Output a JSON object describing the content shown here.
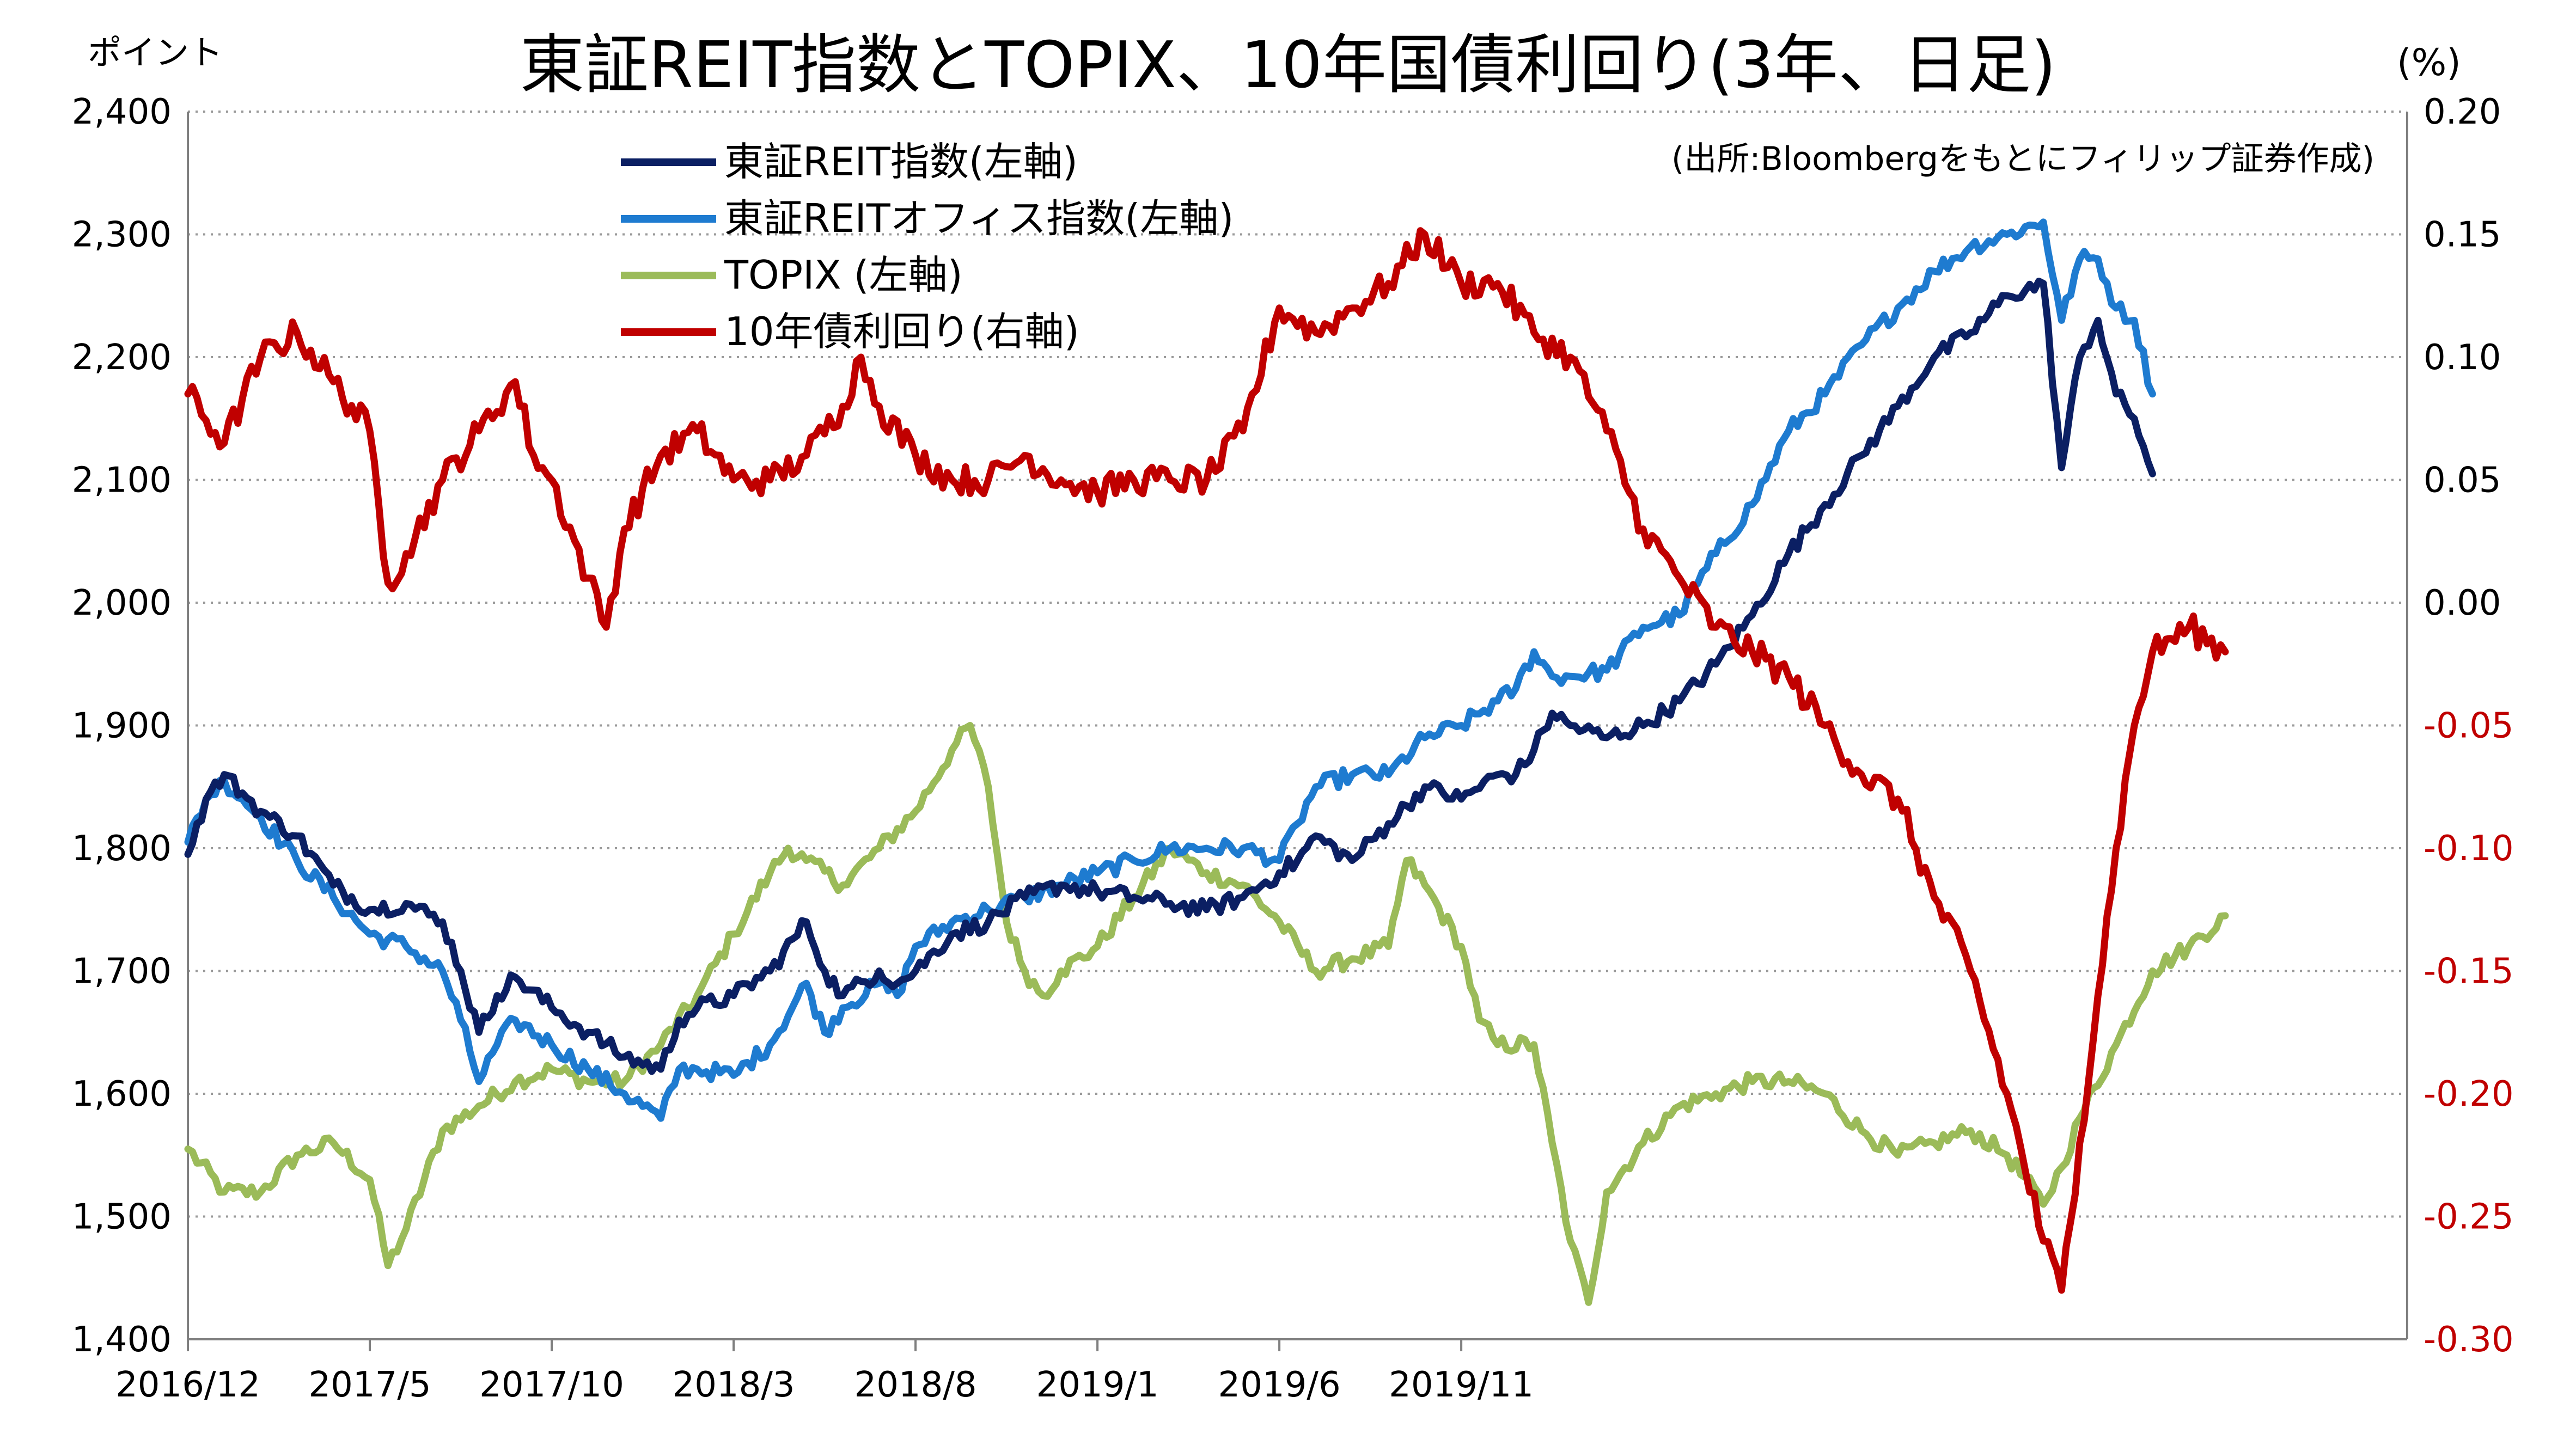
{
  "header": {
    "title": "東証REIT指数とTOPIX、10年国債利回り(3年、日足)",
    "left_unit": "ポイント",
    "right_unit": "(%)",
    "source": "(出所:Bloombergをもとにフィリップ証券作成)"
  },
  "colors": {
    "reit": "#0b1f63",
    "reit_office": "#1e7bd0",
    "topix": "#9bbb59",
    "jgb10y": "#c00000",
    "grid": "#9a9a9a",
    "right_negative_tick": "#c00000"
  },
  "chart_data": {
    "type": "line",
    "title": "東証REIT指数とTOPIX、10年国債利回り(3年、日足)",
    "x_tick_labels": [
      "2016/12",
      "2017/5",
      "2017/10",
      "2018/3",
      "2018/8",
      "2019/1",
      "2019/6",
      "2019/11"
    ],
    "x_range": [
      "2016/12",
      "2019/12"
    ],
    "y_left": {
      "label": "ポイント",
      "range": [
        1400,
        2400
      ],
      "ticks": [
        "1,400",
        "1,500",
        "1,600",
        "1,700",
        "1,800",
        "1,900",
        "2,000",
        "2,100",
        "2,200",
        "2,300",
        "2,400"
      ]
    },
    "y_right": {
      "label": "(%)",
      "range": [
        -0.3,
        0.2
      ],
      "ticks": [
        "-0.30",
        "-0.25",
        "-0.20",
        "-0.15",
        "-0.10",
        "-0.05",
        "0.00",
        "0.05",
        "0.10",
        "0.15",
        "0.20"
      ]
    },
    "grid": "horizontal dotted",
    "legend_position": "top-left inside plot",
    "x_unit": "month (2016/12 = 0)",
    "series": [
      {
        "name": "東証REIT指数(左軸)",
        "axis": "left",
        "color": "#0b1f63",
        "points": [
          [
            0,
            1795
          ],
          [
            0.5,
            1840
          ],
          [
            1,
            1860
          ],
          [
            1.5,
            1845
          ],
          [
            2,
            1830
          ],
          [
            3,
            1810
          ],
          [
            4,
            1770
          ],
          [
            5,
            1750
          ],
          [
            6,
            1755
          ],
          [
            7,
            1740
          ],
          [
            7.5,
            1700
          ],
          [
            8,
            1650
          ],
          [
            8.5,
            1680
          ],
          [
            9,
            1695
          ],
          [
            10,
            1670
          ],
          [
            11,
            1650
          ],
          [
            12,
            1630
          ],
          [
            13,
            1620
          ],
          [
            13.5,
            1660
          ],
          [
            14,
            1670
          ],
          [
            15,
            1680
          ],
          [
            16,
            1700
          ],
          [
            17,
            1740
          ],
          [
            17.5,
            1700
          ],
          [
            18,
            1680
          ],
          [
            19,
            1700
          ],
          [
            19.5,
            1690
          ],
          [
            20,
            1700
          ],
          [
            21,
            1730
          ],
          [
            22,
            1740
          ],
          [
            23,
            1760
          ],
          [
            24,
            1770
          ],
          [
            25,
            1765
          ],
          [
            26,
            1760
          ],
          [
            27,
            1755
          ],
          [
            28,
            1750
          ],
          [
            29,
            1760
          ],
          [
            30,
            1780
          ],
          [
            30.5,
            1790
          ],
          [
            31,
            1810
          ],
          [
            32,
            1790
          ],
          [
            33,
            1820
          ],
          [
            34,
            1850
          ],
          [
            35,
            1840
          ],
          [
            36,
            1860
          ],
          [
            36.5,
            1860
          ],
          [
            37,
            1880
          ],
          [
            37.5,
            1910
          ],
          [
            38,
            1900
          ],
          [
            39,
            1890
          ],
          [
            40,
            1900
          ],
          [
            41,
            1920
          ],
          [
            42,
            1950
          ],
          [
            43,
            1990
          ],
          [
            44,
            2040
          ],
          [
            45,
            2080
          ],
          [
            46,
            2120
          ],
          [
            47,
            2160
          ],
          [
            48,
            2200
          ],
          [
            49,
            2220
          ],
          [
            50,
            2250
          ],
          [
            51,
            2260
          ],
          [
            51.5,
            2110
          ],
          [
            52,
            2200
          ],
          [
            52.5,
            2230
          ],
          [
            53,
            2170
          ],
          [
            53.5,
            2150
          ],
          [
            54,
            2105
          ]
        ]
      },
      {
        "name": "東証REITオフィス指数(左軸)",
        "axis": "left",
        "color": "#1e7bd0",
        "points": [
          [
            0,
            1805
          ],
          [
            0.5,
            1840
          ],
          [
            1,
            1855
          ],
          [
            1.5,
            1840
          ],
          [
            2,
            1825
          ],
          [
            3,
            1790
          ],
          [
            4,
            1760
          ],
          [
            5,
            1730
          ],
          [
            6,
            1720
          ],
          [
            7,
            1700
          ],
          [
            7.5,
            1660
          ],
          [
            8,
            1610
          ],
          [
            8.5,
            1640
          ],
          [
            9,
            1660
          ],
          [
            10,
            1640
          ],
          [
            11,
            1620
          ],
          [
            12,
            1600
          ],
          [
            13,
            1580
          ],
          [
            13.5,
            1620
          ],
          [
            14,
            1620
          ],
          [
            15,
            1615
          ],
          [
            16,
            1640
          ],
          [
            17,
            1690
          ],
          [
            17.5,
            1650
          ],
          [
            18,
            1670
          ],
          [
            19,
            1690
          ],
          [
            19.5,
            1680
          ],
          [
            20,
            1720
          ],
          [
            21,
            1740
          ],
          [
            22,
            1750
          ],
          [
            23,
            1760
          ],
          [
            24,
            1770
          ],
          [
            25,
            1780
          ],
          [
            26,
            1790
          ],
          [
            27,
            1800
          ],
          [
            28,
            1800
          ],
          [
            29,
            1800
          ],
          [
            30,
            1790
          ],
          [
            30.5,
            1820
          ],
          [
            31,
            1850
          ],
          [
            32,
            1860
          ],
          [
            33,
            1860
          ],
          [
            34,
            1890
          ],
          [
            35,
            1900
          ],
          [
            36,
            1920
          ],
          [
            36.5,
            1930
          ],
          [
            37,
            1960
          ],
          [
            37.5,
            1940
          ],
          [
            38,
            1940
          ],
          [
            39,
            1945
          ],
          [
            40,
            1980
          ],
          [
            41,
            1990
          ],
          [
            42,
            2040
          ],
          [
            43,
            2080
          ],
          [
            44,
            2140
          ],
          [
            45,
            2170
          ],
          [
            46,
            2210
          ],
          [
            47,
            2240
          ],
          [
            48,
            2270
          ],
          [
            49,
            2290
          ],
          [
            50,
            2300
          ],
          [
            51,
            2310
          ],
          [
            51.5,
            2230
          ],
          [
            52,
            2280
          ],
          [
            52.5,
            2280
          ],
          [
            53,
            2240
          ],
          [
            53.5,
            2230
          ],
          [
            54,
            2170
          ]
        ]
      },
      {
        "name": "TOPIX (左軸)",
        "axis": "left",
        "color": "#9bbb59",
        "points": [
          [
            0,
            1555
          ],
          [
            1,
            1520
          ],
          [
            2,
            1520
          ],
          [
            3,
            1550
          ],
          [
            4,
            1560
          ],
          [
            5,
            1530
          ],
          [
            5.5,
            1460
          ],
          [
            6,
            1490
          ],
          [
            7,
            1570
          ],
          [
            8,
            1590
          ],
          [
            9,
            1610
          ],
          [
            10,
            1620
          ],
          [
            11,
            1610
          ],
          [
            12,
            1610
          ],
          [
            13,
            1640
          ],
          [
            14,
            1680
          ],
          [
            15,
            1730
          ],
          [
            16,
            1780
          ],
          [
            16.5,
            1800
          ],
          [
            17,
            1790
          ],
          [
            18,
            1770
          ],
          [
            19,
            1800
          ],
          [
            20,
            1830
          ],
          [
            21,
            1880
          ],
          [
            21.5,
            1900
          ],
          [
            22,
            1850
          ],
          [
            22.5,
            1740
          ],
          [
            23,
            1700
          ],
          [
            23.5,
            1680
          ],
          [
            24,
            1700
          ],
          [
            25,
            1720
          ],
          [
            26,
            1760
          ],
          [
            27,
            1800
          ],
          [
            28,
            1780
          ],
          [
            29,
            1770
          ],
          [
            30,
            1740
          ],
          [
            31,
            1700
          ],
          [
            32,
            1710
          ],
          [
            33,
            1720
          ],
          [
            33.5,
            1790
          ],
          [
            34,
            1770
          ],
          [
            35,
            1720
          ],
          [
            35.5,
            1660
          ],
          [
            36,
            1640
          ],
          [
            37,
            1640
          ],
          [
            37.5,
            1560
          ],
          [
            38,
            1480
          ],
          [
            38.5,
            1430
          ],
          [
            39,
            1520
          ],
          [
            40,
            1560
          ],
          [
            41,
            1590
          ],
          [
            42,
            1600
          ],
          [
            43,
            1610
          ],
          [
            44,
            1610
          ],
          [
            45,
            1600
          ],
          [
            46,
            1570
          ],
          [
            47,
            1550
          ],
          [
            48,
            1560
          ],
          [
            49,
            1570
          ],
          [
            50,
            1550
          ],
          [
            51,
            1510
          ],
          [
            51.5,
            1540
          ],
          [
            52,
            1580
          ],
          [
            53,
            1640
          ],
          [
            54,
            1700
          ],
          [
            55,
            1720
          ],
          [
            56,
            1745
          ]
        ]
      },
      {
        "name": "10年債利回り(右軸)",
        "axis": "right",
        "color": "#c00000",
        "points": [
          [
            0,
            0.085
          ],
          [
            1,
            0.065
          ],
          [
            2,
            0.1
          ],
          [
            3,
            0.11
          ],
          [
            4,
            0.09
          ],
          [
            5,
            0.07
          ],
          [
            5.5,
            0.008
          ],
          [
            6,
            0.02
          ],
          [
            7,
            0.05
          ],
          [
            8,
            0.07
          ],
          [
            9,
            0.09
          ],
          [
            9.5,
            0.06
          ],
          [
            10,
            0.05
          ],
          [
            11,
            0.01
          ],
          [
            11.5,
            -0.01
          ],
          [
            12,
            0.03
          ],
          [
            13,
            0.06
          ],
          [
            14,
            0.07
          ],
          [
            15,
            0.05
          ],
          [
            16,
            0.05
          ],
          [
            17,
            0.06
          ],
          [
            18,
            0.08
          ],
          [
            18.5,
            0.1
          ],
          [
            19,
            0.08
          ],
          [
            20,
            0.06
          ],
          [
            21,
            0.05
          ],
          [
            22,
            0.05
          ],
          [
            23,
            0.06
          ],
          [
            24,
            0.05
          ],
          [
            25,
            0.045
          ],
          [
            26,
            0.05
          ],
          [
            27,
            0.05
          ],
          [
            28,
            0.05
          ],
          [
            29,
            0.07
          ],
          [
            30,
            0.12
          ],
          [
            31,
            0.11
          ],
          [
            32,
            0.12
          ],
          [
            33,
            0.13
          ],
          [
            34,
            0.15
          ],
          [
            35,
            0.13
          ],
          [
            36,
            0.13
          ],
          [
            37,
            0.11
          ],
          [
            38,
            0.1
          ],
          [
            39,
            0.07
          ],
          [
            40,
            0.03
          ],
          [
            41,
            0.01
          ],
          [
            42,
            -0.01
          ],
          [
            43,
            -0.02
          ],
          [
            44,
            -0.03
          ],
          [
            45,
            -0.05
          ],
          [
            46,
            -0.07
          ],
          [
            47,
            -0.08
          ],
          [
            48,
            -0.12
          ],
          [
            49,
            -0.15
          ],
          [
            50,
            -0.2
          ],
          [
            51,
            -0.26
          ],
          [
            51.5,
            -0.28
          ],
          [
            52,
            -0.22
          ],
          [
            52.5,
            -0.16
          ],
          [
            53,
            -0.1
          ],
          [
            53.5,
            -0.05
          ],
          [
            54,
            -0.02
          ],
          [
            55,
            -0.01
          ],
          [
            56,
            -0.02
          ]
        ]
      }
    ]
  }
}
